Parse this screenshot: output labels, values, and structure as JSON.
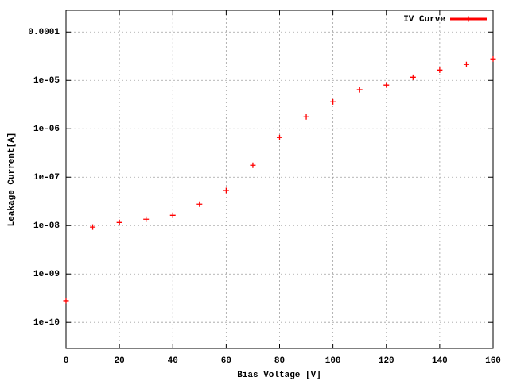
{
  "chart_data": {
    "type": "scatter",
    "x_label": "Bias Voltage [V]",
    "y_label": "Leakage Current[A]",
    "x": [
      0,
      10,
      20,
      30,
      40,
      50,
      60,
      70,
      80,
      90,
      100,
      110,
      120,
      130,
      140,
      150,
      160
    ],
    "series": [
      {
        "name": "IV Curve",
        "color": "#ff0000",
        "values": [
          2.8e-10,
          9.3e-09,
          1.16e-08,
          1.35e-08,
          1.63e-08,
          2.77e-08,
          5.3e-08,
          1.76e-07,
          6.6e-07,
          1.76e-06,
          3.6e-06,
          6.4e-06,
          8e-06,
          1.16e-05,
          1.63e-05,
          2.13e-05,
          2.77e-05
        ]
      }
    ],
    "xlim": [
      0,
      160
    ],
    "xticks": [
      0,
      20,
      40,
      60,
      80,
      100,
      120,
      140,
      160
    ],
    "ylim": [
      2.9e-11,
      0.00028
    ],
    "yticks": [
      {
        "value": 1e-10,
        "label": "1e-10"
      },
      {
        "value": 1e-09,
        "label": "1e-09"
      },
      {
        "value": 1e-08,
        "label": "1e-08"
      },
      {
        "value": 1e-07,
        "label": "1e-07"
      },
      {
        "value": 1e-06,
        "label": "1e-06"
      },
      {
        "value": 1e-05,
        "label": "1e-05"
      },
      0.0001
    ],
    "y_log_scale": true,
    "grid": true,
    "legend_position": "top-right"
  }
}
